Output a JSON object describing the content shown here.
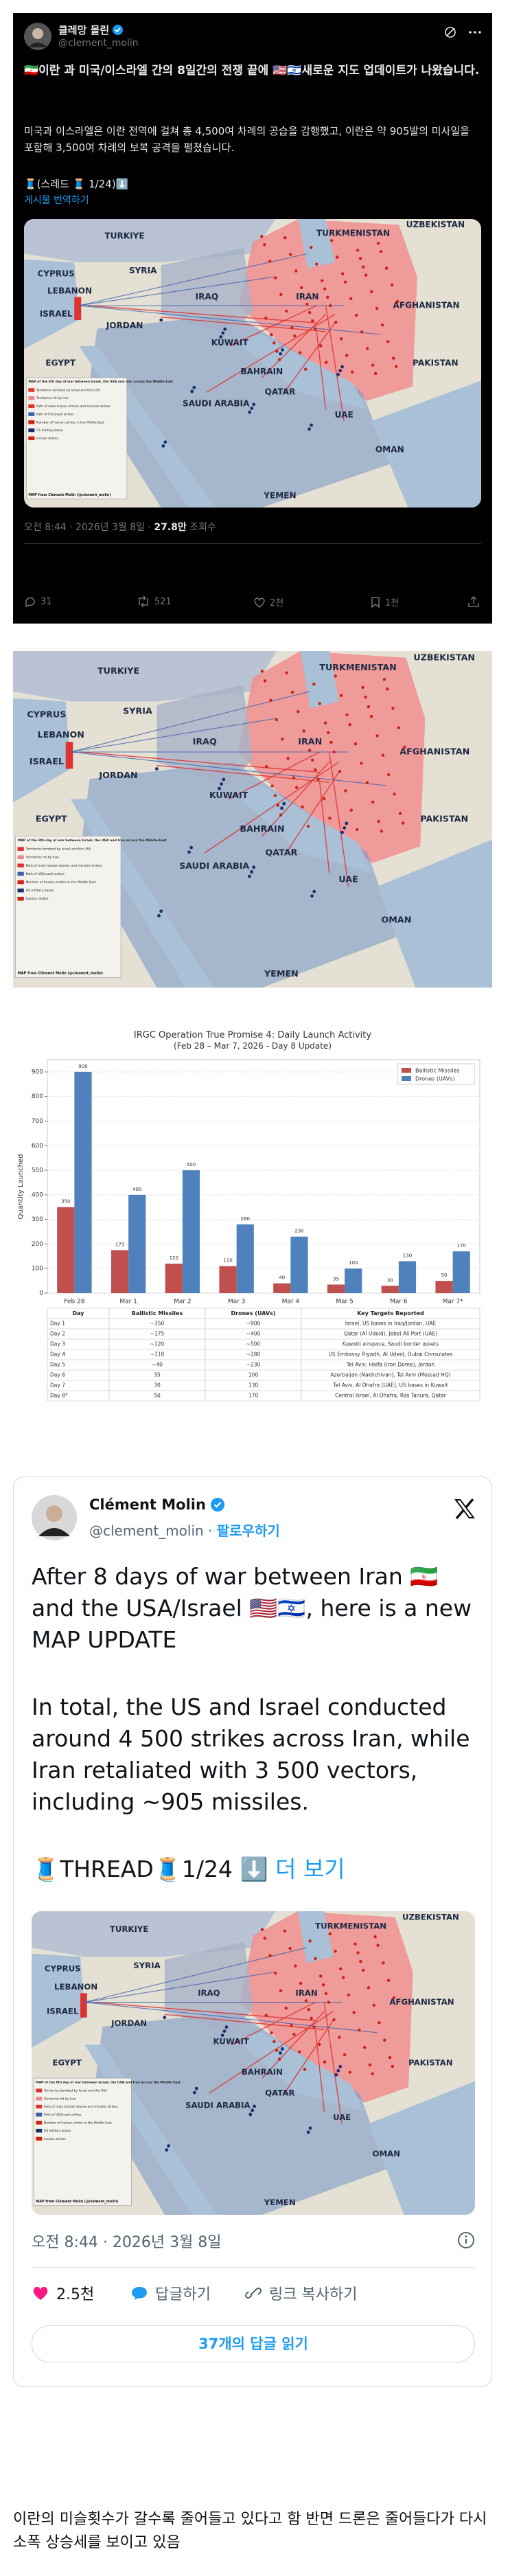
{
  "dark_tweet": {
    "display_name": "클레망 몰린",
    "handle": "@clement_molin",
    "headline": "🇮🇷이란 과 미국/이스라엘 간의 8일간의 전쟁 끝에 🇺🇸🇮🇱새로운 지도 업데이트가 나왔습니다.",
    "body": "미국과 이스라엘은 이란 전역에 걸쳐 총 4,500여 차례의 공습을 감행했고, 이란은 약 905발의 미사일을 포함해 3,500여 차례의 보복 공격을 펼쳤습니다.",
    "thread": "🧵(스레드 🧵 1/24)⬇️",
    "translate": "게시물 번역하기",
    "meta": "오전 8:44 · 2026년 3월 8일 · ",
    "views": "27.8만",
    "views_label": " 조회수",
    "actions": [
      "31",
      "521",
      "2천",
      "1천"
    ]
  },
  "map": {
    "countries": [
      "TURKIYE",
      "TURKMENISTAN",
      "UZBEKISTAN",
      "SYRIA",
      "CYPRUS",
      "LEBANON",
      "ISRAEL",
      "JORDAN",
      "IRAQ",
      "IRAN",
      "AFGHANISTAN",
      "KUWAIT",
      "BAHRAIN",
      "QATAR",
      "PAKISTAN",
      "EGYPT",
      "SAUDI ARABIA",
      "UAE",
      "OMAN",
      "YEMEN"
    ],
    "legend_title": "MAP of the 8th day of war between Israel, the USA and Iran across the Middle East",
    "legend_items": [
      "Territories bombed by Israel and the USA",
      "Territories hit by Iran",
      "Path of main Iranian drones and missiles strikes",
      "Path of US/Israeli strikes",
      "Number of Iranian strikes in the Middle East",
      "US military bases",
      "Iranian strikes"
    ],
    "credit": "MAP from Clément Molin (@clement_molin)"
  },
  "chart_data": {
    "type": "bar",
    "title": "IRGC Operation True Promise 4: Daily Launch Activity",
    "subtitle": "(Feb 28 – Mar 7, 2026 - Day 8 Update)",
    "y_label": "Quantity Launched",
    "categories": [
      "Feb 28",
      "Mar 1",
      "Mar 2",
      "Mar 3",
      "Mar 4",
      "Mar 5",
      "Mar 6",
      "Mar 7*"
    ],
    "series": [
      {
        "name": "Ballistic Missiles",
        "color": "#c0504d",
        "values": [
          350,
          175,
          120,
          110,
          40,
          35,
          30,
          50
        ]
      },
      {
        "name": "Drones (UAVs)",
        "color": "#4f81bd",
        "values": [
          900,
          400,
          500,
          280,
          230,
          100,
          130,
          170
        ]
      }
    ],
    "ylim": [
      0,
      950
    ],
    "yticks": [
      0,
      100,
      200,
      300,
      400,
      500,
      600,
      700,
      800,
      900
    ],
    "grid": true,
    "legend": "top-right",
    "table": {
      "columns": [
        "Day",
        "Ballistic Missiles",
        "Drones (UAVs)",
        "Key Targets Reported"
      ],
      "rows": [
        [
          "Day 1",
          "~350",
          "~900",
          "Israel, US bases in Iraq/Jordan, UAE"
        ],
        [
          "Day 2",
          "~175",
          "~400",
          "Qatar (Al Udeid), Jebel Ali Port (UAE)"
        ],
        [
          "Day 3",
          "~120",
          "~500",
          "Kuwaiti airspace, Saudi border assets"
        ],
        [
          "Day 4",
          "~110",
          "~280",
          "US Embassy Riyadh, Al Udeid, Dubai Consulates"
        ],
        [
          "Day 5",
          "~40",
          "~230",
          "Tel Aviv, Haifa (Iron Dome), Jordan"
        ],
        [
          "Day 6",
          "35",
          "100",
          "Azerbaijan (Nakhchivan), Tel Aviv (Mossad HQ)"
        ],
        [
          "Day 7",
          "30",
          "130",
          "Tel Aviv, Al Dhafra (UAE), US bases in Kuwait"
        ],
        [
          "Day 8*",
          "50",
          "170",
          "Central Israel, Al Dhafra, Ras Tanura, Qatar"
        ]
      ]
    }
  },
  "light_tweet": {
    "display_name": "Clément Molin",
    "handle": "@clement_molin",
    "follow": "팔로우하기",
    "para1": "After 8 days of war between Iran 🇮🇷 and the USA/Israel 🇺🇸🇮🇱, here is a new MAP UPDATE",
    "para2": "In total, the US and Israel conducted around 4 500 strikes across Iran, while Iran retaliated with 3 500 vectors, including ~905 missiles.",
    "thread": "🧵THREAD🧵1/24 ⬇️ ",
    "more": "더 보기",
    "meta": "오전 8:44 · 2026년 3월 8일",
    "likes": "2.5천",
    "reply": "답글하기",
    "copy_link": "링크 복사하기",
    "read_replies": "37개의 답글 읽기"
  },
  "caption": "이란의 미슬횟수가 갈수록 줄어들고 있다고 함 반면 드론은 줄어들다가 다시 소폭 상승세를 보이고 있음"
}
